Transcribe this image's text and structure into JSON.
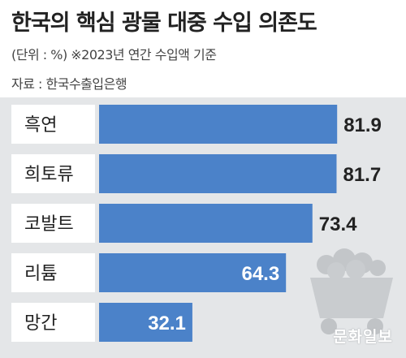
{
  "title": "한국의 핵심 광물 대중 수입 의존도",
  "unit_note": "(단위 : %)  ※2023년 연간 수입액 기준",
  "source": "자료 : 한국수출입은행",
  "watermark": "문화일보",
  "colors": {
    "bar": "#4b82c9",
    "panel": "#e4e6e8",
    "label_box": "#ffffff"
  },
  "chart_data": {
    "type": "bar",
    "orientation": "horizontal",
    "categories": [
      "흑연",
      "희토류",
      "코발트",
      "리튬",
      "망간"
    ],
    "values": [
      81.9,
      81.7,
      73.4,
      64.3,
      32.1
    ],
    "xlim": [
      0,
      100
    ],
    "grid": false,
    "legend": "none",
    "decoration": "mine-cart-icon"
  }
}
